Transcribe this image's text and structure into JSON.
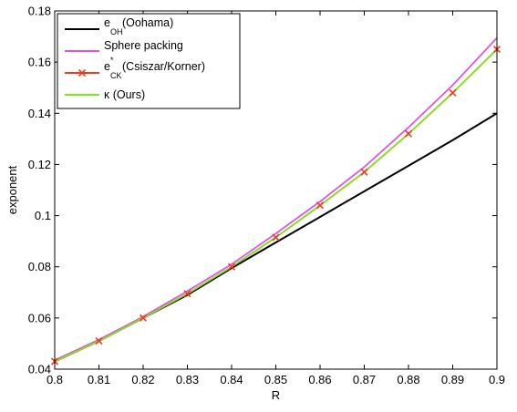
{
  "chart_data": {
    "type": "line",
    "xlabel": "R",
    "ylabel": "exponent",
    "xlim": [
      0.8,
      0.9
    ],
    "ylim": [
      0.04,
      0.18
    ],
    "xticks": [
      0.8,
      0.81,
      0.82,
      0.83,
      0.84,
      0.85,
      0.86,
      0.87,
      0.88,
      0.89,
      0.9
    ],
    "yticks": [
      0.04,
      0.06,
      0.08,
      0.1,
      0.12,
      0.14,
      0.16,
      0.18
    ],
    "xtick_labels": [
      "0.8",
      "0.81",
      "0.82",
      "0.83",
      "0.84",
      "0.85",
      "0.86",
      "0.87",
      "0.88",
      "0.89",
      "0.9"
    ],
    "ytick_labels": [
      "0.04",
      "0.06",
      "0.08",
      "0.1",
      "0.12",
      "0.14",
      "0.16",
      "0.18"
    ],
    "grid": false,
    "legend_position": "top-left",
    "legend": [
      {
        "base": "e",
        "sub": "OH",
        "sup": "",
        "suffix": " (Oohama)"
      },
      {
        "base": "Sphere packing",
        "sub": "",
        "sup": "",
        "suffix": ""
      },
      {
        "base": "e",
        "sub": "CK",
        "sup": "*",
        "suffix": " (Csiszar/Korner)"
      },
      {
        "base": "κ (Ours)",
        "sub": "",
        "sup": "",
        "suffix": ""
      }
    ],
    "series": [
      {
        "name": "e_OH (Oohama)",
        "color": "#000000",
        "marker": "none",
        "x": [
          0.8,
          0.81,
          0.82,
          0.83,
          0.84,
          0.85,
          0.86,
          0.87,
          0.88,
          0.89,
          0.9
        ],
        "y": [
          0.043,
          0.051,
          0.06,
          0.069,
          0.0795,
          0.0895,
          0.0995,
          0.1095,
          0.1195,
          0.1295,
          0.14
        ]
      },
      {
        "name": "Sphere packing",
        "color": "#e055e0",
        "marker": "none",
        "x": [
          0.8,
          0.81,
          0.82,
          0.83,
          0.84,
          0.85,
          0.86,
          0.87,
          0.88,
          0.89,
          0.9
        ],
        "y": [
          0.0435,
          0.0515,
          0.0605,
          0.0705,
          0.081,
          0.093,
          0.1055,
          0.119,
          0.1345,
          0.151,
          0.1695
        ]
      },
      {
        "name": "e*_CK (Csiszar/Korner)",
        "color": "#ee3b1c",
        "marker": "x",
        "x": [
          0.8,
          0.81,
          0.82,
          0.83,
          0.84,
          0.85,
          0.86,
          0.87,
          0.88,
          0.89,
          0.9
        ],
        "y": [
          0.043,
          0.051,
          0.06,
          0.0695,
          0.08,
          0.0915,
          0.104,
          0.117,
          0.132,
          0.148,
          0.165
        ]
      },
      {
        "name": "κ (Ours)",
        "color": "#7ee81e",
        "marker": "none",
        "x": [
          0.8,
          0.81,
          0.82,
          0.83,
          0.84,
          0.85,
          0.86,
          0.87,
          0.88,
          0.89,
          0.9
        ],
        "y": [
          0.043,
          0.051,
          0.06,
          0.0695,
          0.08,
          0.0915,
          0.104,
          0.117,
          0.132,
          0.148,
          0.165
        ]
      }
    ]
  }
}
